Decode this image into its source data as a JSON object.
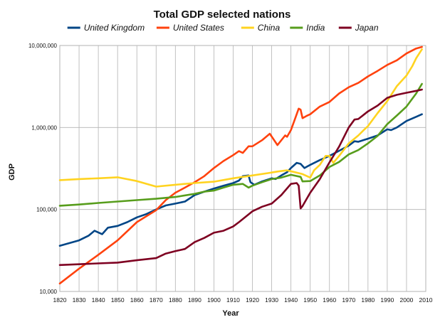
{
  "chart_data": {
    "type": "line",
    "title": "Total GDP selected nations",
    "xlabel": "Year",
    "ylabel": "GDP",
    "xlim": [
      1820,
      2010
    ],
    "ylim": [
      10000,
      10000000
    ],
    "y_scale": "log",
    "grid": true,
    "legend_position": "top",
    "x_ticks": [
      "1820",
      "1830",
      "1840",
      "1850",
      "1860",
      "1870",
      "1880",
      "1890",
      "1900",
      "1910",
      "1920",
      "1930",
      "1940",
      "1950",
      "1960",
      "1970",
      "1980",
      "1990",
      "2000",
      "2010"
    ],
    "y_ticks": [
      {
        "value": 10000,
        "label": "10,000"
      },
      {
        "value": 100000,
        "label": "100,000"
      },
      {
        "value": 1000000,
        "label": "1,000,000"
      },
      {
        "value": 10000000,
        "label": "10,000,000"
      }
    ],
    "series": [
      {
        "name": "United Kingdom",
        "color": "#004586",
        "points": [
          [
            1820,
            36000
          ],
          [
            1830,
            42000
          ],
          [
            1835,
            48000
          ],
          [
            1838,
            55000
          ],
          [
            1842,
            50000
          ],
          [
            1845,
            60000
          ],
          [
            1850,
            63000
          ],
          [
            1855,
            70000
          ],
          [
            1860,
            80000
          ],
          [
            1865,
            88000
          ],
          [
            1870,
            100000
          ],
          [
            1875,
            112000
          ],
          [
            1880,
            118000
          ],
          [
            1885,
            125000
          ],
          [
            1890,
            150000
          ],
          [
            1895,
            165000
          ],
          [
            1900,
            180000
          ],
          [
            1905,
            195000
          ],
          [
            1910,
            210000
          ],
          [
            1913,
            225000
          ],
          [
            1915,
            255000
          ],
          [
            1918,
            260000
          ],
          [
            1919,
            215000
          ],
          [
            1921,
            200000
          ],
          [
            1925,
            220000
          ],
          [
            1930,
            240000
          ],
          [
            1932,
            235000
          ],
          [
            1935,
            260000
          ],
          [
            1938,
            285000
          ],
          [
            1940,
            320000
          ],
          [
            1943,
            370000
          ],
          [
            1945,
            360000
          ],
          [
            1947,
            320000
          ],
          [
            1950,
            350000
          ],
          [
            1955,
            400000
          ],
          [
            1960,
            450000
          ],
          [
            1965,
            520000
          ],
          [
            1970,
            600000
          ],
          [
            1973,
            680000
          ],
          [
            1975,
            670000
          ],
          [
            1980,
            730000
          ],
          [
            1985,
            800000
          ],
          [
            1990,
            950000
          ],
          [
            1992,
            930000
          ],
          [
            1995,
            1000000
          ],
          [
            2000,
            1200000
          ],
          [
            2005,
            1350000
          ],
          [
            2008,
            1450000
          ]
        ]
      },
      {
        "name": "United States",
        "color": "#ff420e",
        "points": [
          [
            1820,
            12500
          ],
          [
            1830,
            19000
          ],
          [
            1840,
            28000
          ],
          [
            1850,
            42000
          ],
          [
            1860,
            70000
          ],
          [
            1870,
            98000
          ],
          [
            1875,
            130000
          ],
          [
            1880,
            160000
          ],
          [
            1885,
            185000
          ],
          [
            1890,
            215000
          ],
          [
            1895,
            255000
          ],
          [
            1900,
            320000
          ],
          [
            1905,
            390000
          ],
          [
            1910,
            460000
          ],
          [
            1913,
            515000
          ],
          [
            1915,
            490000
          ],
          [
            1918,
            590000
          ],
          [
            1920,
            590000
          ],
          [
            1925,
            700000
          ],
          [
            1929,
            840000
          ],
          [
            1933,
            610000
          ],
          [
            1937,
            800000
          ],
          [
            1938,
            770000
          ],
          [
            1940,
            930000
          ],
          [
            1942,
            1250000
          ],
          [
            1944,
            1700000
          ],
          [
            1945,
            1650000
          ],
          [
            1946,
            1300000
          ],
          [
            1948,
            1380000
          ],
          [
            1950,
            1450000
          ],
          [
            1955,
            1800000
          ],
          [
            1960,
            2050000
          ],
          [
            1965,
            2600000
          ],
          [
            1970,
            3100000
          ],
          [
            1975,
            3500000
          ],
          [
            1980,
            4200000
          ],
          [
            1985,
            4900000
          ],
          [
            1990,
            5800000
          ],
          [
            1995,
            6600000
          ],
          [
            2000,
            8000000
          ],
          [
            2005,
            9200000
          ],
          [
            2008,
            9600000
          ]
        ]
      },
      {
        "name": "China",
        "color": "#ffd320",
        "points": [
          [
            1820,
            228000
          ],
          [
            1830,
            235000
          ],
          [
            1840,
            240000
          ],
          [
            1850,
            247000
          ],
          [
            1860,
            222000
          ],
          [
            1870,
            190000
          ],
          [
            1880,
            200000
          ],
          [
            1890,
            210000
          ],
          [
            1900,
            218000
          ],
          [
            1910,
            240000
          ],
          [
            1920,
            260000
          ],
          [
            1929,
            280000
          ],
          [
            1933,
            290000
          ],
          [
            1938,
            300000
          ],
          [
            1942,
            285000
          ],
          [
            1946,
            270000
          ],
          [
            1950,
            245000
          ],
          [
            1952,
            300000
          ],
          [
            1955,
            350000
          ],
          [
            1958,
            450000
          ],
          [
            1960,
            450000
          ],
          [
            1962,
            370000
          ],
          [
            1965,
            450000
          ],
          [
            1970,
            640000
          ],
          [
            1975,
            800000
          ],
          [
            1978,
            940000
          ],
          [
            1980,
            1040000
          ],
          [
            1985,
            1500000
          ],
          [
            1990,
            2100000
          ],
          [
            1995,
            3200000
          ],
          [
            2000,
            4300000
          ],
          [
            2003,
            5600000
          ],
          [
            2005,
            7000000
          ],
          [
            2008,
            9000000
          ]
        ]
      },
      {
        "name": "India",
        "color": "#579d1c",
        "points": [
          [
            1820,
            111000
          ],
          [
            1830,
            115000
          ],
          [
            1840,
            120000
          ],
          [
            1850,
            125000
          ],
          [
            1860,
            130000
          ],
          [
            1870,
            135000
          ],
          [
            1880,
            142000
          ],
          [
            1890,
            155000
          ],
          [
            1895,
            165000
          ],
          [
            1900,
            170000
          ],
          [
            1905,
            185000
          ],
          [
            1910,
            200000
          ],
          [
            1915,
            205000
          ],
          [
            1918,
            185000
          ],
          [
            1920,
            195000
          ],
          [
            1925,
            215000
          ],
          [
            1930,
            235000
          ],
          [
            1935,
            245000
          ],
          [
            1940,
            265000
          ],
          [
            1945,
            250000
          ],
          [
            1946,
            220000
          ],
          [
            1950,
            222000
          ],
          [
            1955,
            260000
          ],
          [
            1960,
            330000
          ],
          [
            1965,
            380000
          ],
          [
            1970,
            470000
          ],
          [
            1975,
            530000
          ],
          [
            1980,
            640000
          ],
          [
            1985,
            790000
          ],
          [
            1990,
            1100000
          ],
          [
            1995,
            1400000
          ],
          [
            2000,
            1800000
          ],
          [
            2005,
            2600000
          ],
          [
            2008,
            3400000
          ]
        ]
      },
      {
        "name": "Japan",
        "color": "#7e0021",
        "points": [
          [
            1820,
            21000
          ],
          [
            1830,
            21500
          ],
          [
            1840,
            22000
          ],
          [
            1850,
            22500
          ],
          [
            1860,
            24000
          ],
          [
            1870,
            25500
          ],
          [
            1875,
            29000
          ],
          [
            1880,
            31000
          ],
          [
            1885,
            33000
          ],
          [
            1890,
            40000
          ],
          [
            1895,
            45000
          ],
          [
            1900,
            52000
          ],
          [
            1905,
            55000
          ],
          [
            1910,
            62000
          ],
          [
            1913,
            70000
          ],
          [
            1918,
            87000
          ],
          [
            1920,
            95000
          ],
          [
            1925,
            108000
          ],
          [
            1930,
            118000
          ],
          [
            1935,
            150000
          ],
          [
            1940,
            205000
          ],
          [
            1943,
            210000
          ],
          [
            1944,
            195000
          ],
          [
            1945,
            103000
          ],
          [
            1946,
            110000
          ],
          [
            1950,
            160000
          ],
          [
            1955,
            235000
          ],
          [
            1960,
            375000
          ],
          [
            1965,
            585000
          ],
          [
            1970,
            1000000
          ],
          [
            1973,
            1250000
          ],
          [
            1975,
            1270000
          ],
          [
            1980,
            1570000
          ],
          [
            1985,
            1850000
          ],
          [
            1990,
            2300000
          ],
          [
            1995,
            2500000
          ],
          [
            2000,
            2650000
          ],
          [
            2005,
            2800000
          ],
          [
            2008,
            2900000
          ]
        ]
      }
    ]
  }
}
